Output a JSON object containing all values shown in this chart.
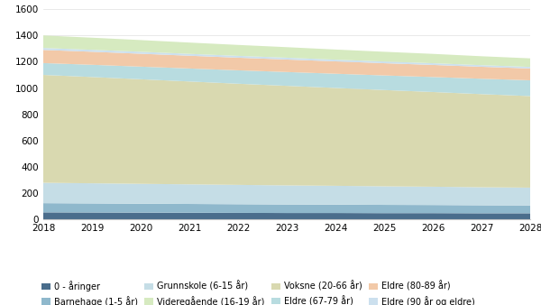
{
  "years": [
    2018,
    2019,
    2020,
    2021,
    2022,
    2023,
    2024,
    2025,
    2026,
    2027,
    2028
  ],
  "series_order": [
    "0 - åringer",
    "Barnehage (1-5 år)",
    "Grunnskole (6-15 år)",
    "Voksne (20-66 år)",
    "Eldre (67-79 år)",
    "Eldre (80-89 år)",
    "Eldre (90 år og eldre)",
    "Videregående (16-19 år)"
  ],
  "series": {
    "0 - åringer": [
      55,
      54,
      53,
      52,
      51,
      50,
      50,
      49,
      49,
      48,
      48
    ],
    "Barnehage (1-5 år)": [
      70,
      69,
      68,
      67,
      66,
      65,
      64,
      63,
      62,
      61,
      60
    ],
    "Grunnskole (6-15 år)": [
      155,
      153,
      151,
      149,
      147,
      145,
      143,
      141,
      139,
      137,
      135
    ],
    "Voksne (20-66 år)": [
      820,
      808,
      795,
      782,
      769,
      757,
      744,
      732,
      720,
      708,
      696
    ],
    "Eldre (67-79 år)": [
      90,
      93,
      96,
      99,
      102,
      105,
      108,
      111,
      114,
      117,
      120
    ],
    "Eldre (80-89 år)": [
      100,
      99,
      98,
      97,
      96,
      95,
      94,
      93,
      92,
      91,
      90
    ],
    "Eldre (90 år og eldre)": [
      15,
      15,
      15,
      14,
      14,
      14,
      13,
      13,
      13,
      12,
      12
    ],
    "Videregående (16-19 år)": [
      95,
      92,
      89,
      86,
      83,
      80,
      77,
      74,
      71,
      68,
      65
    ]
  },
  "colors": {
    "0 - åringer": "#4a6d8c",
    "Barnehage (1-5 år)": "#8fb8cc",
    "Grunnskole (6-15 år)": "#c5dde6",
    "Voksne (20-66 år)": "#d9d9b0",
    "Eldre (67-79 år)": "#b8dce0",
    "Eldre (80-89 år)": "#f2c9a8",
    "Eldre (90 år og eldre)": "#cce0ee",
    "Videregående (16-19 år)": "#d6eac0"
  },
  "legend_order": [
    "0 - åringer",
    "Barnehage (1-5 år)",
    "Grunnskole (6-15 år)",
    "Videregående (16-19 år)",
    "Voksne (20-66 år)",
    "Eldre (67-79 år)",
    "Eldre (80-89 år)",
    "Eldre (90 år og eldre)"
  ],
  "ylim": [
    0,
    1600
  ],
  "yticks": [
    0,
    200,
    400,
    600,
    800,
    1000,
    1200,
    1400,
    1600
  ],
  "xticks": [
    2018,
    2019,
    2020,
    2021,
    2022,
    2023,
    2024,
    2025,
    2026,
    2027,
    2028
  ],
  "background_color": "#ffffff"
}
